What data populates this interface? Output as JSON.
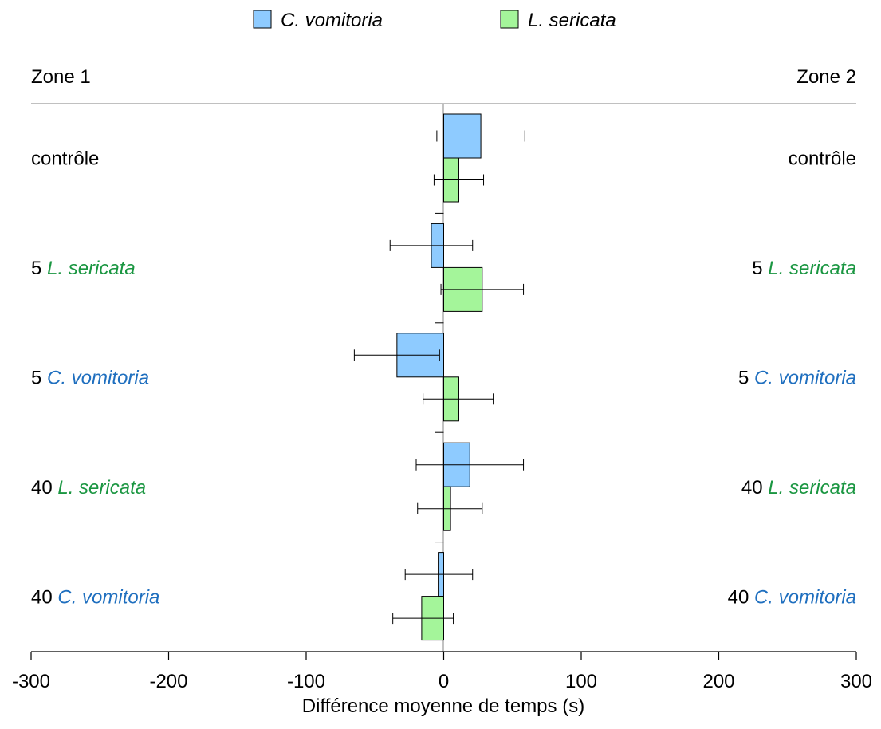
{
  "chart_data": {
    "type": "bar",
    "orientation": "horizontal",
    "xlabel": "Différence moyenne de temps (s)",
    "xlim": [
      -300,
      300
    ],
    "xticks": [
      "-300",
      "-200",
      "-100",
      "0",
      "100",
      "200",
      "300"
    ],
    "xtick_values": [
      -300,
      -200,
      -100,
      0,
      100,
      200,
      300
    ],
    "zone_left": "Zone 1",
    "zone_right": "Zone 2",
    "legend_position": "top-center",
    "categories": [
      {
        "prefix": "",
        "species": "contrôle",
        "species_color": "#000000"
      },
      {
        "prefix": "5 ",
        "species": "L. sericata",
        "species_color": "#1a9641"
      },
      {
        "prefix": "5 ",
        "species": "C. vomitoria",
        "species_color": "#1f6fbf"
      },
      {
        "prefix": "40 ",
        "species": "L. sericata",
        "species_color": "#1a9641"
      },
      {
        "prefix": "40 ",
        "species": "C. vomitoria",
        "species_color": "#1f6fbf"
      }
    ],
    "series": [
      {
        "name": "C. vomitoria",
        "color": "#8ecbff",
        "text_color": "#1f6fbf",
        "values": [
          27,
          -9,
          -34,
          19,
          -4
        ],
        "error_low": [
          -5,
          -39,
          -65,
          -20,
          -28
        ],
        "error_high": [
          59,
          21,
          -3,
          58,
          21
        ]
      },
      {
        "name": "L. sericata",
        "color": "#a4f59a",
        "text_color": "#1a9641",
        "values": [
          11,
          28,
          11,
          5,
          -16
        ],
        "error_low": [
          -7,
          -2,
          -15,
          -19,
          -37
        ],
        "error_high": [
          29,
          58,
          36,
          28,
          7
        ]
      }
    ]
  }
}
